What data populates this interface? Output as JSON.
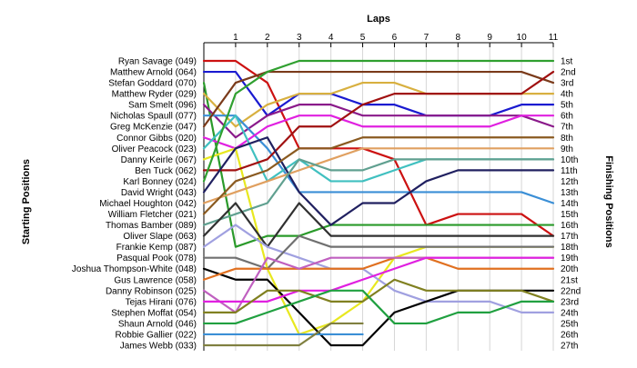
{
  "chart_data": {
    "type": "line",
    "title": "",
    "xlabel": "Laps",
    "ylabel_left": "Starting Positions",
    "ylabel_right": "Finishing Positions",
    "x": [
      0,
      1,
      2,
      3,
      4,
      5,
      6,
      7,
      8,
      9,
      10,
      11
    ],
    "x_tick_labels": [
      "1",
      "2",
      "3",
      "4",
      "5",
      "6",
      "7",
      "8",
      "9",
      "10",
      "11"
    ],
    "y_range": [
      1,
      27
    ],
    "grid": "vertical",
    "finishing_labels": [
      "1st",
      "2nd",
      "3rd",
      "4th",
      "5th",
      "6th",
      "7th",
      "8th",
      "9th",
      "10th",
      "11th",
      "12th",
      "13th",
      "14th",
      "15th",
      "16th",
      "17th",
      "18th",
      "19th",
      "20th",
      "21st",
      "22nd",
      "23rd",
      "24th",
      "25th",
      "26th",
      "27th"
    ],
    "series": [
      {
        "name": "Ryan Savage (049)",
        "color": "#cc1111",
        "positions": [
          1,
          1,
          3,
          9,
          9,
          9,
          10,
          16,
          15,
          15,
          15,
          17
        ]
      },
      {
        "name": "Matthew Arnold (064)",
        "color": "#1a1ad0",
        "positions": [
          2,
          2,
          6,
          4,
          4,
          5,
          5,
          6,
          6,
          6,
          5,
          5
        ]
      },
      {
        "name": "Stefan Goddard (070)",
        "color": "#2a9a2a",
        "positions": [
          3,
          18,
          17,
          17,
          16,
          16,
          16,
          16,
          16,
          16,
          16,
          16
        ]
      },
      {
        "name": "Matthew Ryder (029)",
        "color": "#d8b040",
        "positions": [
          4,
          7,
          5,
          4,
          4,
          3,
          3,
          4,
          4,
          4,
          4,
          4
        ]
      },
      {
        "name": "Sam Smelt (096)",
        "color": "#8a1a8a",
        "positions": [
          5,
          8,
          6,
          5,
          5,
          6,
          6,
          6,
          6,
          6,
          6,
          7
        ]
      },
      {
        "name": "Nicholas Spaull (077)",
        "color": "#3b8fd6",
        "positions": [
          6,
          6,
          9,
          13,
          13,
          13,
          13,
          13,
          13,
          13,
          13,
          14
        ]
      },
      {
        "name": "Greg McKenzie (047)",
        "color": "#7a3a1a",
        "positions": [
          7,
          3,
          2,
          2,
          2,
          2,
          2,
          2,
          2,
          2,
          2,
          3
        ]
      },
      {
        "name": "Connor Gibbs (020)",
        "color": "#e020e0",
        "positions": [
          8,
          9,
          7,
          6,
          6,
          7,
          7,
          7,
          7,
          7,
          6,
          6
        ]
      },
      {
        "name": "Oliver Peacock (023)",
        "color": "#40c0c0",
        "positions": [
          9,
          6,
          12,
          10,
          12,
          12,
          11,
          10,
          10,
          10,
          10,
          10
        ]
      },
      {
        "name": "Danny Keirle (067)",
        "color": "#e8e820",
        "positions": [
          10,
          9,
          20,
          26,
          25,
          23,
          19,
          18,
          18,
          18,
          18,
          18
        ]
      },
      {
        "name": "Ben Tuck (062)",
        "color": "#a01010",
        "positions": [
          11,
          11,
          10,
          7,
          7,
          5,
          4,
          4,
          4,
          4,
          4,
          2
        ]
      },
      {
        "name": "Karl Bonney (024)",
        "color": "#30a030",
        "positions": [
          12,
          4,
          2,
          1,
          1,
          1,
          1,
          1,
          1,
          1,
          1,
          1
        ]
      },
      {
        "name": "David Wright (043)",
        "color": "#202060",
        "positions": [
          13,
          9,
          8,
          13,
          16,
          14,
          14,
          12,
          11,
          11,
          11,
          11
        ]
      },
      {
        "name": "Michael Houghton (042)",
        "color": "#e0a060",
        "positions": [
          14,
          13,
          12,
          11,
          10,
          9,
          9,
          9,
          9,
          9,
          9,
          9
        ]
      },
      {
        "name": "William Fletcher (021)",
        "color": "#8a5a20",
        "positions": [
          15,
          12,
          11,
          9,
          9,
          8,
          8,
          8,
          8,
          8,
          8,
          8
        ]
      },
      {
        "name": "Thomas Bamber (089)",
        "color": "#60a090",
        "positions": [
          16,
          15,
          14,
          10,
          11,
          11,
          10,
          10,
          10,
          10,
          10,
          10
        ]
      },
      {
        "name": "Oliver Slape (063)",
        "color": "#303030",
        "positions": [
          17,
          14,
          18,
          14,
          17,
          17,
          17,
          17,
          17,
          17,
          17,
          17
        ]
      },
      {
        "name": "Frankie Kemp (087)",
        "color": "#a0a0e0",
        "positions": [
          18,
          16,
          18,
          19,
          20,
          20,
          22,
          23,
          23,
          23,
          24,
          24
        ]
      },
      {
        "name": "Pasqual Pook (078)",
        "color": "#707070",
        "positions": [
          19,
          19,
          20,
          17,
          18,
          18,
          18,
          18,
          18,
          18,
          18,
          18
        ]
      },
      {
        "name": "Joshua Thompson-White (048)",
        "color": "#000000",
        "positions": [
          20,
          21,
          21,
          24,
          27,
          27,
          24,
          23,
          22,
          22,
          22,
          22
        ]
      },
      {
        "name": "Gus Lawrence (058)",
        "color": "#e07020",
        "positions": [
          21,
          20,
          20,
          20,
          20,
          20,
          19,
          19,
          20,
          20,
          20,
          20
        ]
      },
      {
        "name": "Danny Robinson (025)",
        "color": "#c060c0",
        "positions": [
          22,
          24,
          19,
          20,
          19,
          19,
          19,
          19,
          19,
          19,
          19,
          19
        ]
      },
      {
        "name": "Tejas Hirani (076)",
        "color": "#e020e0",
        "positions": [
          23,
          23,
          23,
          22,
          22,
          21,
          20,
          19,
          19,
          19,
          19,
          19
        ]
      },
      {
        "name": "Stephen Moffat (054)",
        "color": "#808020",
        "positions": [
          24,
          24,
          22,
          22,
          23,
          23,
          21,
          22,
          22,
          22,
          22,
          23
        ]
      },
      {
        "name": "Shaun Arnold (046)",
        "color": "#20a040",
        "positions": [
          25,
          25,
          24,
          23,
          22,
          22,
          25,
          25,
          24,
          24,
          23,
          23
        ]
      },
      {
        "name": "Robbie Gallier (022)",
        "color": "#3b8fd6",
        "positions": [
          26,
          26,
          26,
          26,
          26,
          26,
          null,
          null,
          null,
          null,
          null,
          null
        ]
      },
      {
        "name": "James Webb (033)",
        "color": "#808040",
        "positions": [
          27,
          27,
          27,
          27,
          25,
          25,
          null,
          null,
          null,
          null,
          null,
          null
        ]
      }
    ]
  }
}
